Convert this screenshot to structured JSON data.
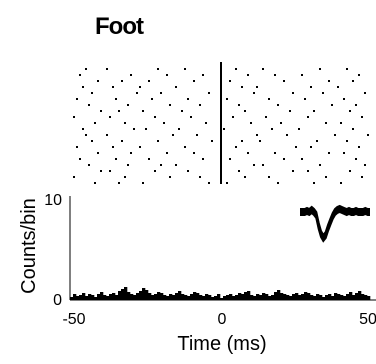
{
  "chart_data": {
    "type": "bar",
    "title": "Foot",
    "xlabel": "Time (ms)",
    "ylabel": "Counts/bin",
    "xlim": [
      -50,
      50
    ],
    "ylim": [
      0,
      10
    ],
    "xticks": [
      "-50",
      "0",
      "50"
    ],
    "yticks": [
      "0",
      "10"
    ],
    "grid": false,
    "legend": "none",
    "raster_rows": 20,
    "raster_trials": [
      [
        -45,
        -38,
        -21,
        -12,
        5,
        14,
        33,
        42
      ],
      [
        -47,
        -30,
        -18,
        -6,
        9,
        18,
        27,
        46
      ],
      [
        -41,
        -33,
        -24,
        -9,
        3,
        21,
        36,
        44
      ],
      [
        -46,
        -36,
        -27,
        -15,
        7,
        12,
        30,
        39
      ],
      [
        -43,
        -28,
        -20,
        -4,
        11,
        24,
        34,
        48
      ],
      [
        -48,
        -35,
        -23,
        -11,
        2,
        16,
        28,
        41
      ],
      [
        -44,
        -31,
        -17,
        -7,
        6,
        19,
        37,
        45
      ],
      [
        -40,
        -34,
        -26,
        -13,
        8,
        23,
        31,
        43
      ],
      [
        -49,
        -37,
        -22,
        -10,
        4,
        15,
        29,
        47
      ],
      [
        -42,
        -32,
        -19,
        -5,
        10,
        20,
        35,
        40
      ],
      [
        -46,
        -29,
        -25,
        -14,
        1,
        17,
        26,
        44
      ],
      [
        -45,
        -38,
        -16,
        -8,
        12,
        22,
        38,
        49
      ],
      [
        -43,
        -33,
        -21,
        -3,
        7,
        13,
        32,
        42
      ],
      [
        -48,
        -36,
        -27,
        -12,
        5,
        25,
        30,
        46
      ],
      [
        -41,
        -30,
        -18,
        -9,
        9,
        18,
        36,
        41
      ],
      [
        -47,
        -35,
        -24,
        -6,
        3,
        21,
        27,
        45
      ],
      [
        -44,
        -31,
        -20,
        -15,
        11,
        14,
        33,
        48
      ],
      [
        -40,
        -37,
        -22,
        -11,
        6,
        24,
        29,
        43
      ],
      [
        -49,
        -32,
        -17,
        -7,
        8,
        16,
        35,
        47
      ],
      [
        -42,
        -34,
        -26,
        -4,
        2,
        19,
        31,
        40
      ]
    ],
    "histogram": {
      "bin_width_ms": 1,
      "values": [
        0.3,
        0.6,
        0.4,
        0.5,
        0.7,
        0.4,
        0.6,
        0.5,
        0.3,
        0.6,
        0.8,
        0.5,
        0.4,
        0.6,
        0.7,
        0.5,
        0.9,
        1.1,
        1.3,
        0.8,
        0.6,
        0.5,
        0.7,
        0.9,
        1.2,
        1.0,
        0.7,
        0.5,
        0.6,
        0.8,
        0.7,
        0.5,
        0.4,
        0.6,
        0.5,
        0.7,
        0.9,
        0.6,
        0.5,
        0.4,
        0.6,
        0.8,
        0.7,
        0.5,
        0.4,
        0.6,
        0.5,
        0.3,
        0.4,
        0.6,
        0.2,
        0.4,
        0.5,
        0.6,
        0.4,
        0.5,
        0.7,
        0.6,
        0.8,
        0.9,
        0.5,
        0.4,
        0.6,
        0.5,
        0.7,
        0.6,
        0.4,
        0.5,
        0.8,
        1.0,
        0.7,
        0.6,
        0.5,
        0.4,
        0.6,
        0.7,
        0.5,
        0.6,
        0.8,
        0.7,
        0.5,
        0.4,
        0.6,
        0.5,
        0.3,
        0.5,
        0.6,
        0.4,
        0.7,
        0.6,
        0.5,
        0.4,
        0.6,
        0.8,
        0.5,
        0.7,
        0.9,
        0.6,
        0.5,
        0.4
      ]
    },
    "inset": {
      "type": "waveform",
      "values": [
        0,
        0,
        0,
        0.1,
        0,
        0.2,
        0,
        -0.3,
        -1.4,
        -2.2,
        -2.6,
        -2.3,
        -1.6,
        -1.0,
        -0.4,
        0,
        0.2,
        0.3,
        0.2,
        0.1,
        0,
        0.1,
        0,
        0,
        0.1,
        0,
        0,
        0,
        0.1,
        0,
        0
      ]
    }
  }
}
